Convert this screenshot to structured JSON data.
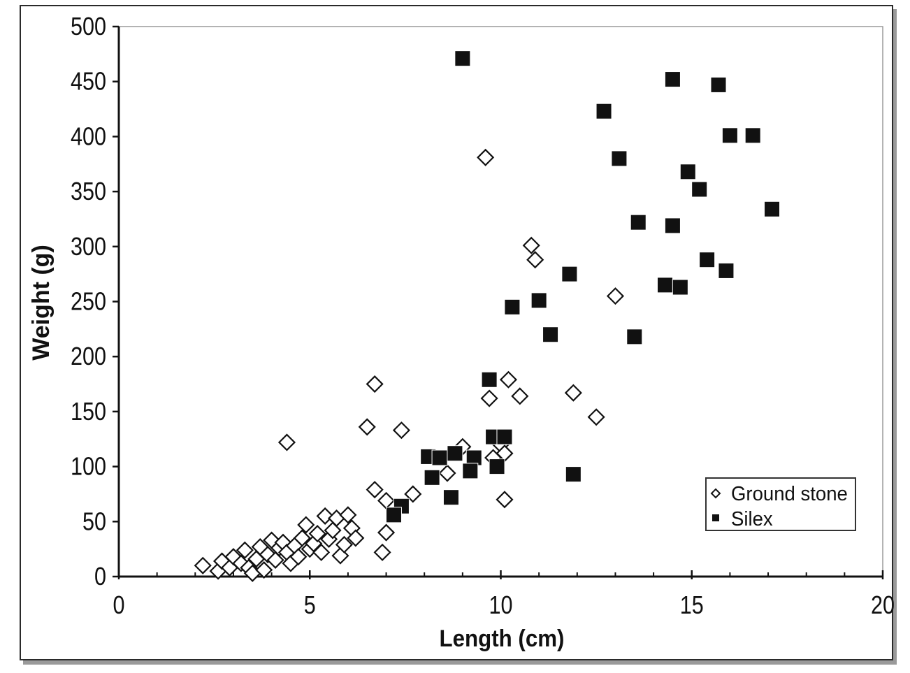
{
  "chart_data": {
    "type": "scatter",
    "title": "",
    "xlabel": "Length (cm)",
    "ylabel": "Weight (g)",
    "xlim": [
      0,
      20
    ],
    "ylim": [
      0,
      500
    ],
    "x_ticks": [
      0,
      5,
      10,
      15,
      20
    ],
    "y_ticks": [
      0,
      50,
      100,
      150,
      200,
      250,
      300,
      350,
      400,
      450,
      500
    ],
    "x_tick_labels": [
      "0",
      "5",
      "10",
      "15",
      "20"
    ],
    "y_tick_labels": [
      "0",
      "50",
      "100",
      "150",
      "200",
      "250",
      "300",
      "350",
      "400",
      "450",
      "500"
    ],
    "x_minor_step": 1,
    "grid": false,
    "legend_position": "bottom-right",
    "series": [
      {
        "name": "Ground stone",
        "marker": "open-diamond",
        "color": "#111111",
        "points": [
          [
            2.2,
            10
          ],
          [
            2.6,
            5
          ],
          [
            2.7,
            14
          ],
          [
            2.9,
            8
          ],
          [
            3.0,
            18
          ],
          [
            3.2,
            12
          ],
          [
            3.3,
            24
          ],
          [
            3.4,
            8
          ],
          [
            3.5,
            3
          ],
          [
            3.6,
            16
          ],
          [
            3.7,
            27
          ],
          [
            3.8,
            6
          ],
          [
            3.9,
            20
          ],
          [
            4.0,
            33
          ],
          [
            4.1,
            15
          ],
          [
            4.2,
            26
          ],
          [
            4.3,
            31
          ],
          [
            4.4,
            22
          ],
          [
            4.5,
            12
          ],
          [
            4.6,
            28
          ],
          [
            4.7,
            18
          ],
          [
            4.8,
            35
          ],
          [
            4.9,
            47
          ],
          [
            5.0,
            25
          ],
          [
            5.1,
            30
          ],
          [
            5.2,
            39
          ],
          [
            5.3,
            22
          ],
          [
            5.4,
            55
          ],
          [
            5.5,
            34
          ],
          [
            5.6,
            42
          ],
          [
            5.7,
            53
          ],
          [
            5.8,
            19
          ],
          [
            5.9,
            29
          ],
          [
            6.0,
            56
          ],
          [
            6.1,
            44
          ],
          [
            6.2,
            35
          ],
          [
            4.4,
            122
          ],
          [
            6.5,
            136
          ],
          [
            6.7,
            175
          ],
          [
            6.7,
            79
          ],
          [
            6.9,
            22
          ],
          [
            7.0,
            40
          ],
          [
            7.0,
            69
          ],
          [
            7.4,
            133
          ],
          [
            7.7,
            75
          ],
          [
            8.6,
            94
          ],
          [
            9.0,
            118
          ],
          [
            9.6,
            381
          ],
          [
            9.7,
            162
          ],
          [
            9.8,
            108
          ],
          [
            10.0,
            120
          ],
          [
            10.1,
            112
          ],
          [
            10.1,
            70
          ],
          [
            10.2,
            179
          ],
          [
            10.5,
            164
          ],
          [
            10.8,
            301
          ],
          [
            10.9,
            288
          ],
          [
            11.9,
            167
          ],
          [
            12.5,
            145
          ],
          [
            13.0,
            255
          ]
        ]
      },
      {
        "name": "Silex",
        "marker": "filled-square",
        "color": "#111111",
        "points": [
          [
            9.0,
            471
          ],
          [
            14.5,
            452
          ],
          [
            15.7,
            447
          ],
          [
            12.7,
            423
          ],
          [
            16.0,
            401
          ],
          [
            16.6,
            401
          ],
          [
            13.1,
            380
          ],
          [
            14.9,
            368
          ],
          [
            15.2,
            352
          ],
          [
            17.1,
            334
          ],
          [
            13.6,
            322
          ],
          [
            14.5,
            319
          ],
          [
            15.4,
            288
          ],
          [
            15.9,
            278
          ],
          [
            11.8,
            275
          ],
          [
            14.3,
            265
          ],
          [
            14.7,
            263
          ],
          [
            11.0,
            251
          ],
          [
            10.3,
            245
          ],
          [
            11.3,
            220
          ],
          [
            13.5,
            218
          ],
          [
            9.7,
            179
          ],
          [
            9.8,
            127
          ],
          [
            10.1,
            127
          ],
          [
            8.1,
            109
          ],
          [
            8.4,
            108
          ],
          [
            8.8,
            112
          ],
          [
            9.3,
            108
          ],
          [
            8.2,
            90
          ],
          [
            9.2,
            96
          ],
          [
            9.9,
            100
          ],
          [
            11.9,
            93
          ],
          [
            8.7,
            72
          ],
          [
            7.4,
            64
          ],
          [
            7.2,
            56
          ]
        ]
      }
    ]
  }
}
